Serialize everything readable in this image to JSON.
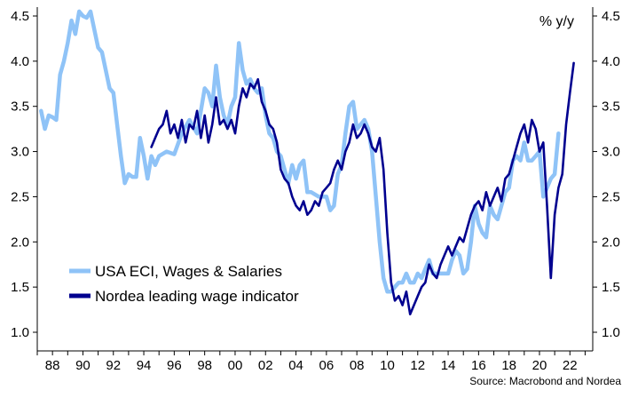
{
  "chart_data": {
    "type": "line",
    "unit_label": "% y/y",
    "source": "Source: Macrobond and Nordea",
    "y_ticks": [
      "4.5",
      "4.0",
      "3.5",
      "3.0",
      "2.5",
      "2.0",
      "1.5",
      "1.0"
    ],
    "x_ticks": [
      "88",
      "90",
      "92",
      "94",
      "96",
      "98",
      "00",
      "02",
      "04",
      "06",
      "08",
      "10",
      "12",
      "14",
      "16",
      "18",
      "20",
      "22"
    ],
    "ylim": [
      0.9,
      4.6
    ],
    "xlim": [
      1987.0,
      2023.5
    ],
    "y_tick_values": [
      4.5,
      4.0,
      3.5,
      3.0,
      2.5,
      2.0,
      1.5,
      1.0
    ],
    "x_tick_values": [
      1988,
      1990,
      1992,
      1994,
      1996,
      1998,
      2000,
      2002,
      2004,
      2006,
      2008,
      2010,
      2012,
      2014,
      2016,
      2018,
      2020,
      2022
    ],
    "grid": false,
    "legend_position": "bottom-left",
    "series": [
      {
        "name": "USA ECI, Wages & Salaries",
        "color": "#8fc3f7",
        "points": [
          [
            1987.25,
            3.45
          ],
          [
            1987.5,
            3.25
          ],
          [
            1987.75,
            3.4
          ],
          [
            1988.0,
            3.38
          ],
          [
            1988.25,
            3.35
          ],
          [
            1988.5,
            3.85
          ],
          [
            1988.75,
            4.0
          ],
          [
            1989.0,
            4.2
          ],
          [
            1989.25,
            4.45
          ],
          [
            1989.5,
            4.3
          ],
          [
            1989.75,
            4.55
          ],
          [
            1990.0,
            4.5
          ],
          [
            1990.25,
            4.48
          ],
          [
            1990.5,
            4.55
          ],
          [
            1990.75,
            4.35
          ],
          [
            1991.0,
            4.15
          ],
          [
            1991.25,
            4.1
          ],
          [
            1991.5,
            3.9
          ],
          [
            1991.75,
            3.7
          ],
          [
            1992.0,
            3.65
          ],
          [
            1992.25,
            3.3
          ],
          [
            1992.5,
            2.95
          ],
          [
            1992.75,
            2.65
          ],
          [
            1993.0,
            2.75
          ],
          [
            1993.25,
            2.72
          ],
          [
            1993.5,
            2.72
          ],
          [
            1993.75,
            3.15
          ],
          [
            1994.0,
            2.95
          ],
          [
            1994.25,
            2.7
          ],
          [
            1994.5,
            2.95
          ],
          [
            1994.75,
            2.85
          ],
          [
            1995.0,
            2.95
          ],
          [
            1995.5,
            3.0
          ],
          [
            1996.0,
            2.97
          ],
          [
            1996.5,
            3.2
          ],
          [
            1997.0,
            3.35
          ],
          [
            1997.5,
            3.2
          ],
          [
            1998.0,
            3.7
          ],
          [
            1998.25,
            3.65
          ],
          [
            1998.5,
            3.5
          ],
          [
            1998.75,
            3.95
          ],
          [
            1999.0,
            3.6
          ],
          [
            1999.25,
            3.4
          ],
          [
            1999.5,
            3.3
          ],
          [
            1999.75,
            3.5
          ],
          [
            2000.0,
            3.6
          ],
          [
            2000.25,
            4.2
          ],
          [
            2000.5,
            3.9
          ],
          [
            2000.75,
            3.75
          ],
          [
            2001.0,
            3.8
          ],
          [
            2001.25,
            3.7
          ],
          [
            2001.5,
            3.65
          ],
          [
            2001.75,
            3.7
          ],
          [
            2002.0,
            3.4
          ],
          [
            2002.25,
            3.2
          ],
          [
            2002.5,
            3.15
          ],
          [
            2002.75,
            3.0
          ],
          [
            2003.0,
            2.95
          ],
          [
            2003.25,
            2.8
          ],
          [
            2003.5,
            2.65
          ],
          [
            2003.75,
            2.85
          ],
          [
            2004.0,
            2.7
          ],
          [
            2004.25,
            2.85
          ],
          [
            2004.5,
            2.9
          ],
          [
            2004.75,
            2.55
          ],
          [
            2005.0,
            2.55
          ],
          [
            2005.5,
            2.5
          ],
          [
            2006.0,
            2.5
          ],
          [
            2006.25,
            2.35
          ],
          [
            2006.5,
            2.4
          ],
          [
            2006.75,
            2.75
          ],
          [
            2007.0,
            2.85
          ],
          [
            2007.25,
            3.2
          ],
          [
            2007.5,
            3.5
          ],
          [
            2007.75,
            3.55
          ],
          [
            2008.0,
            3.25
          ],
          [
            2008.25,
            3.3
          ],
          [
            2008.5,
            3.35
          ],
          [
            2008.75,
            3.25
          ],
          [
            2009.0,
            3.0
          ],
          [
            2009.25,
            2.5
          ],
          [
            2009.5,
            2.0
          ],
          [
            2009.75,
            1.6
          ],
          [
            2010.0,
            1.45
          ],
          [
            2010.25,
            1.45
          ],
          [
            2010.5,
            1.5
          ],
          [
            2010.75,
            1.55
          ],
          [
            2011.0,
            1.55
          ],
          [
            2011.25,
            1.65
          ],
          [
            2011.5,
            1.55
          ],
          [
            2011.75,
            1.55
          ],
          [
            2012.0,
            1.65
          ],
          [
            2012.25,
            1.6
          ],
          [
            2012.5,
            1.7
          ],
          [
            2012.75,
            1.8
          ],
          [
            2013.0,
            1.65
          ],
          [
            2013.5,
            1.65
          ],
          [
            2014.0,
            1.65
          ],
          [
            2014.25,
            1.8
          ],
          [
            2014.5,
            1.9
          ],
          [
            2014.75,
            1.85
          ],
          [
            2015.0,
            1.65
          ],
          [
            2015.25,
            1.7
          ],
          [
            2015.5,
            2.0
          ],
          [
            2015.75,
            2.4
          ],
          [
            2016.0,
            2.2
          ],
          [
            2016.25,
            2.1
          ],
          [
            2016.5,
            2.05
          ],
          [
            2016.75,
            2.4
          ],
          [
            2017.0,
            2.3
          ],
          [
            2017.25,
            2.25
          ],
          [
            2017.5,
            2.4
          ],
          [
            2017.75,
            2.55
          ],
          [
            2018.0,
            2.6
          ],
          [
            2018.25,
            2.9
          ],
          [
            2018.5,
            2.95
          ],
          [
            2018.75,
            2.9
          ],
          [
            2019.0,
            3.1
          ],
          [
            2019.25,
            2.9
          ],
          [
            2019.5,
            2.9
          ],
          [
            2019.75,
            2.95
          ],
          [
            2020.0,
            3.0
          ],
          [
            2020.25,
            2.5
          ],
          [
            2020.5,
            2.6
          ],
          [
            2020.75,
            2.7
          ],
          [
            2021.0,
            2.75
          ],
          [
            2021.25,
            3.2
          ]
        ]
      },
      {
        "name": "Nordea leading wage indicator",
        "color": "#00008f",
        "points": [
          [
            1994.5,
            3.05
          ],
          [
            1994.75,
            3.15
          ],
          [
            1995.0,
            3.25
          ],
          [
            1995.25,
            3.3
          ],
          [
            1995.5,
            3.45
          ],
          [
            1995.75,
            3.2
          ],
          [
            1996.0,
            3.3
          ],
          [
            1996.25,
            3.15
          ],
          [
            1996.5,
            3.35
          ],
          [
            1996.75,
            3.1
          ],
          [
            1997.0,
            3.3
          ],
          [
            1997.25,
            3.25
          ],
          [
            1997.5,
            3.45
          ],
          [
            1997.75,
            3.15
          ],
          [
            1998.0,
            3.4
          ],
          [
            1998.25,
            3.1
          ],
          [
            1998.5,
            3.3
          ],
          [
            1998.75,
            3.6
          ],
          [
            1999.0,
            3.3
          ],
          [
            1999.25,
            3.35
          ],
          [
            1999.5,
            3.25
          ],
          [
            1999.75,
            3.35
          ],
          [
            2000.0,
            3.2
          ],
          [
            2000.25,
            3.5
          ],
          [
            2000.5,
            3.7
          ],
          [
            2000.75,
            3.6
          ],
          [
            2001.0,
            3.75
          ],
          [
            2001.25,
            3.7
          ],
          [
            2001.5,
            3.8
          ],
          [
            2001.75,
            3.55
          ],
          [
            2002.0,
            3.45
          ],
          [
            2002.25,
            3.3
          ],
          [
            2002.5,
            3.25
          ],
          [
            2002.75,
            3.1
          ],
          [
            2003.0,
            2.8
          ],
          [
            2003.25,
            2.7
          ],
          [
            2003.5,
            2.65
          ],
          [
            2003.75,
            2.5
          ],
          [
            2004.0,
            2.4
          ],
          [
            2004.25,
            2.35
          ],
          [
            2004.5,
            2.45
          ],
          [
            2004.75,
            2.3
          ],
          [
            2005.0,
            2.35
          ],
          [
            2005.25,
            2.45
          ],
          [
            2005.5,
            2.4
          ],
          [
            2005.75,
            2.55
          ],
          [
            2006.0,
            2.6
          ],
          [
            2006.25,
            2.65
          ],
          [
            2006.5,
            2.8
          ],
          [
            2006.75,
            2.9
          ],
          [
            2007.0,
            2.8
          ],
          [
            2007.25,
            3.0
          ],
          [
            2007.5,
            3.1
          ],
          [
            2007.75,
            3.3
          ],
          [
            2008.0,
            3.15
          ],
          [
            2008.25,
            3.2
          ],
          [
            2008.5,
            3.3
          ],
          [
            2008.75,
            3.2
          ],
          [
            2009.0,
            3.05
          ],
          [
            2009.25,
            3.0
          ],
          [
            2009.5,
            3.15
          ],
          [
            2009.75,
            2.8
          ],
          [
            2010.0,
            2.1
          ],
          [
            2010.25,
            1.55
          ],
          [
            2010.5,
            1.35
          ],
          [
            2010.75,
            1.4
          ],
          [
            2011.0,
            1.3
          ],
          [
            2011.25,
            1.45
          ],
          [
            2011.5,
            1.2
          ],
          [
            2011.75,
            1.3
          ],
          [
            2012.0,
            1.4
          ],
          [
            2012.25,
            1.5
          ],
          [
            2012.5,
            1.55
          ],
          [
            2012.75,
            1.75
          ],
          [
            2013.0,
            1.65
          ],
          [
            2013.25,
            1.6
          ],
          [
            2013.5,
            1.75
          ],
          [
            2013.75,
            1.85
          ],
          [
            2014.0,
            1.95
          ],
          [
            2014.25,
            1.85
          ],
          [
            2014.5,
            1.95
          ],
          [
            2014.75,
            2.05
          ],
          [
            2015.0,
            2.0
          ],
          [
            2015.25,
            2.15
          ],
          [
            2015.5,
            2.3
          ],
          [
            2015.75,
            2.4
          ],
          [
            2016.0,
            2.45
          ],
          [
            2016.25,
            2.35
          ],
          [
            2016.5,
            2.55
          ],
          [
            2016.75,
            2.4
          ],
          [
            2017.0,
            2.5
          ],
          [
            2017.25,
            2.6
          ],
          [
            2017.5,
            2.45
          ],
          [
            2017.75,
            2.7
          ],
          [
            2018.0,
            2.75
          ],
          [
            2018.25,
            2.9
          ],
          [
            2018.5,
            3.05
          ],
          [
            2018.75,
            3.2
          ],
          [
            2019.0,
            3.3
          ],
          [
            2019.25,
            3.1
          ],
          [
            2019.5,
            3.35
          ],
          [
            2019.75,
            3.25
          ],
          [
            2020.0,
            3.0
          ],
          [
            2020.25,
            3.1
          ],
          [
            2020.5,
            2.4
          ],
          [
            2020.75,
            1.6
          ],
          [
            2021.0,
            2.3
          ],
          [
            2021.25,
            2.6
          ],
          [
            2021.5,
            2.75
          ],
          [
            2021.75,
            3.3
          ],
          [
            2022.0,
            3.65
          ],
          [
            2022.25,
            3.98
          ]
        ]
      }
    ]
  }
}
